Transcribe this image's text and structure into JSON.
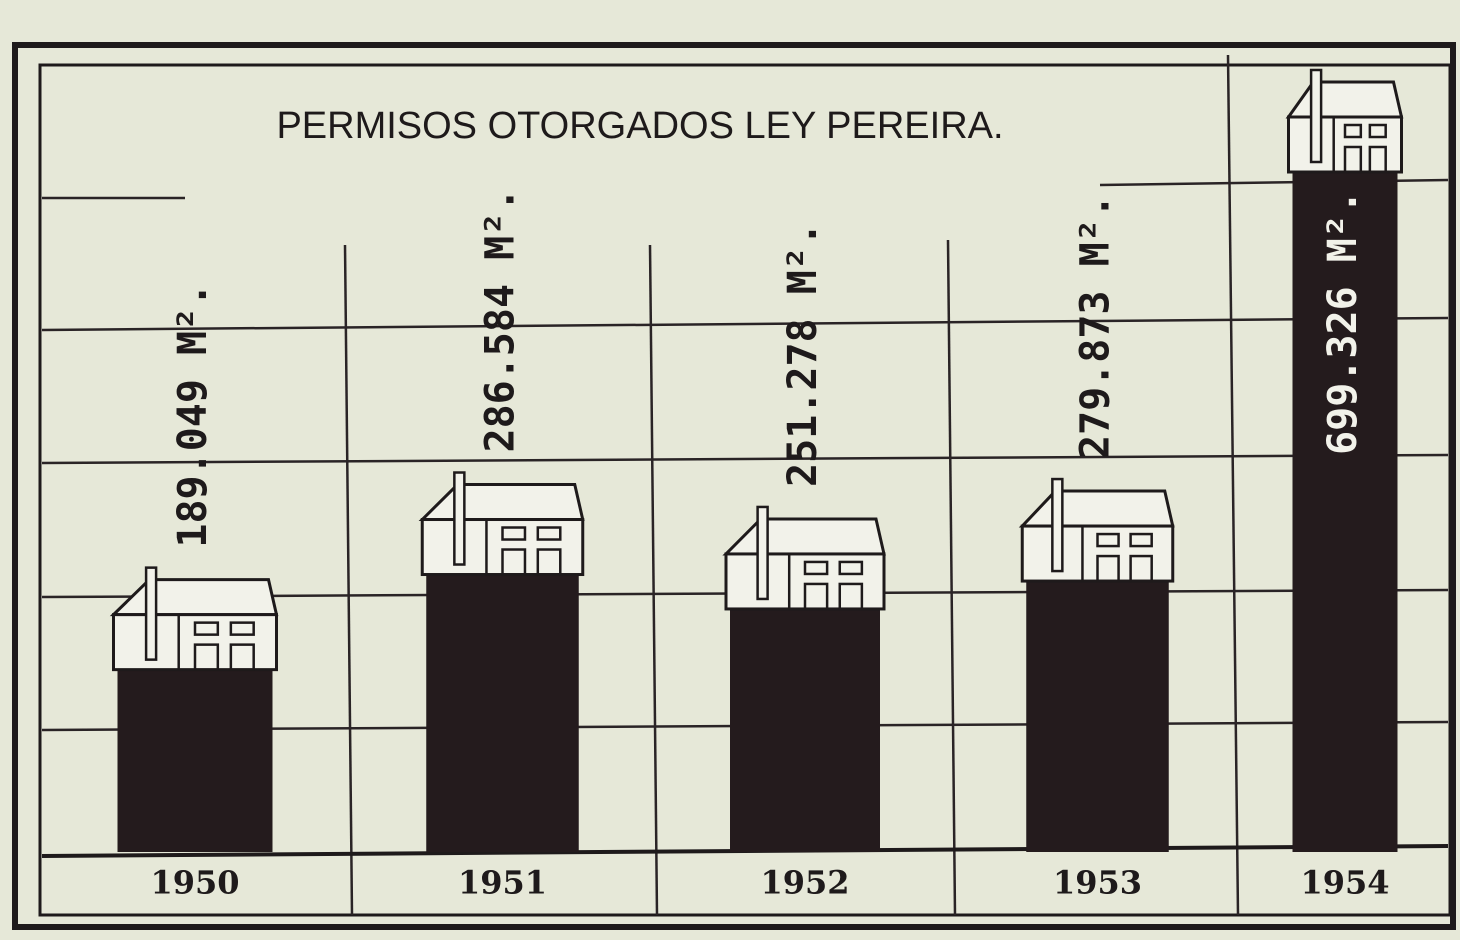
{
  "chart_data": {
    "type": "bar",
    "title": "PERMISOS OTORGADOS LEY PEREIRA.",
    "categories": [
      "1950",
      "1951",
      "1952",
      "1953",
      "1954"
    ],
    "values": [
      189049,
      286584,
      251278,
      279873,
      699326
    ],
    "value_labels": [
      "189.049 M².",
      "286.584 M².",
      "251.278 M².",
      "279.873 M².",
      "699.326 M²."
    ],
    "color": "#241b1d"
  }
}
